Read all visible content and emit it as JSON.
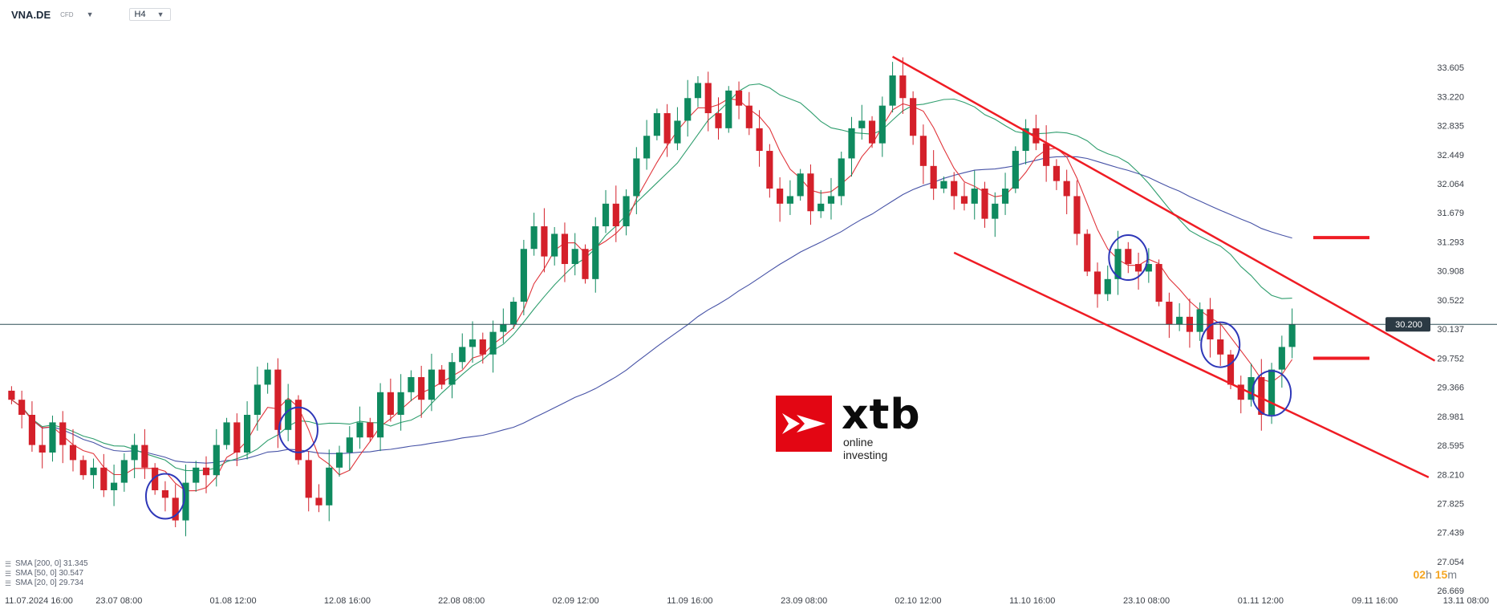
{
  "header": {
    "symbol": "VNA.DE",
    "symbol_type": "CFD",
    "timeframe": "H4"
  },
  "legend": [
    {
      "label": "SMA [200, 0] 31.345"
    },
    {
      "label": "SMA [50, 0] 30.547"
    },
    {
      "label": "SMA [20, 0] 29.734"
    }
  ],
  "timer": {
    "hours": "02",
    "h_unit": "h",
    "minutes": "15",
    "m_unit": "m"
  },
  "logo": {
    "word": "xtb",
    "tagline": "online investing"
  },
  "colors": {
    "up": "#0f8a5f",
    "down": "#d4202a",
    "sma20": "#e0343a",
    "sma50": "#2f9e6e",
    "sma200": "#4652a6",
    "channel": "#ef1c24",
    "annotation": "#2e37b8",
    "price_line": "#2f4f57"
  },
  "chart_data": {
    "type": "candlestick",
    "symbol": "VNA.DE",
    "timeframe": "H4",
    "current_price": 30.2,
    "current_price_label": "30.200",
    "ylim": [
      26.67,
      33.99
    ],
    "y_ticks": [
      "33.605",
      "33.220",
      "32.835",
      "32.449",
      "32.064",
      "31.679",
      "31.293",
      "30.908",
      "30.522",
      "30.137",
      "29.752",
      "29.366",
      "28.981",
      "28.595",
      "28.210",
      "27.825",
      "27.439",
      "27.054",
      "26.669"
    ],
    "x_ticks": [
      "11.07.2024 16:00",
      "23.07 08:00",
      "01.08 12:00",
      "12.08 16:00",
      "22.08 08:00",
      "02.09 12:00",
      "11.09 16:00",
      "23.09 08:00",
      "02.10 12:00",
      "11.10 16:00",
      "23.10 08:00",
      "01.11 12:00",
      "09.11 16:00",
      "13.11 08:00"
    ],
    "candles_close": [
      29.2,
      29.0,
      28.6,
      28.5,
      28.9,
      28.6,
      28.4,
      28.2,
      28.3,
      28.0,
      28.1,
      28.4,
      28.6,
      28.3,
      28.0,
      27.9,
      27.6,
      28.1,
      28.3,
      28.2,
      28.6,
      28.9,
      28.5,
      29.0,
      29.4,
      29.6,
      28.8,
      29.2,
      28.4,
      27.9,
      27.8,
      28.3,
      28.5,
      28.7,
      28.9,
      28.7,
      29.3,
      29.0,
      29.3,
      29.5,
      29.2,
      29.6,
      29.4,
      29.7,
      29.9,
      30.0,
      29.8,
      30.1,
      30.2,
      30.5,
      31.2,
      31.5,
      31.1,
      31.4,
      31.0,
      31.2,
      30.8,
      31.5,
      31.8,
      31.5,
      31.9,
      32.4,
      32.7,
      33.0,
      32.6,
      32.9,
      33.2,
      33.4,
      33.0,
      32.8,
      33.3,
      33.1,
      32.8,
      32.5,
      32.0,
      31.8,
      31.9,
      32.2,
      31.7,
      31.8,
      31.9,
      32.4,
      32.8,
      32.9,
      32.6,
      33.1,
      33.5,
      33.2,
      32.7,
      32.3,
      32.0,
      32.1,
      31.9,
      31.8,
      32.0,
      31.6,
      31.8,
      32.0,
      32.5,
      32.8,
      32.6,
      32.3,
      32.1,
      31.9,
      31.4,
      30.9,
      30.6,
      30.8,
      31.2,
      31.0,
      30.9,
      31.0,
      30.5,
      30.2,
      30.3,
      30.1,
      30.4,
      30.0,
      29.8,
      29.4,
      29.2,
      29.5,
      29.0,
      29.6,
      29.9,
      30.2
    ],
    "sma20_label": "SMA [20, 0] 29.734",
    "sma50_label": "SMA [50, 0] 30.547",
    "sma200_label": "SMA [200, 0] 31.345",
    "sma20_end": 29.734,
    "sma50_end": 30.547,
    "sma200_end": 31.345,
    "annotations": {
      "channel_upper": {
        "from": {
          "date": "26.09",
          "price": 33.75
        },
        "to": {
          "date": "12.11",
          "price": 30.55
        }
      },
      "channel_lower": {
        "from": {
          "date": "03.10",
          "price": 31.15
        },
        "to": {
          "date": "11.11",
          "price": 28.9
        }
      },
      "level_marks": [
        31.35,
        29.75
      ],
      "circled_candles": [
        "25.07",
        "02.08",
        "22.10",
        "01.11",
        "06.11"
      ]
    }
  }
}
